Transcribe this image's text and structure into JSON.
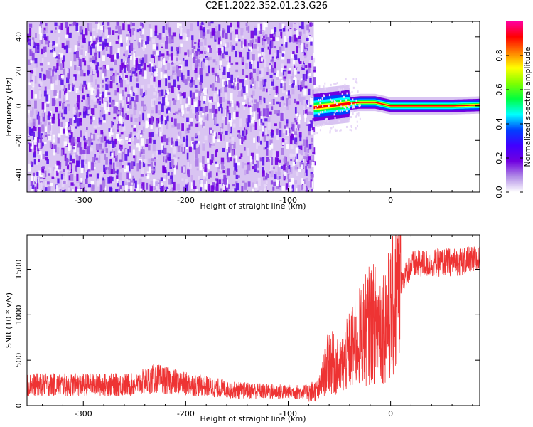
{
  "figure_title": "C2E1.2022.352.01.23.G26",
  "chart_data": [
    {
      "type": "heatmap",
      "xlabel": "Height of straight line (km)",
      "ylabel": "Frequency (Hz)",
      "xlim": [
        -355,
        87
      ],
      "ylim": [
        -50,
        49
      ],
      "xticks": [
        -300,
        -200,
        -100,
        0
      ],
      "yticks": [
        -40,
        -20,
        0,
        20,
        40
      ],
      "colorbar": {
        "label": "Normalized spectral amplitude",
        "range": [
          0.0,
          1.0
        ],
        "ticks": [
          0.0,
          0.2,
          0.4,
          0.6,
          0.8
        ],
        "colormap": [
          "#ffffff",
          "#b18ce6",
          "#7000e0",
          "#4000ff",
          "#0040ff",
          "#00ffff",
          "#00ff40",
          "#80ff00",
          "#ffff00",
          "#ff8000",
          "#ff0000",
          "#ff00a0"
        ]
      },
      "regions": [
        {
          "description": "broadband noise",
          "x_range": [
            -355,
            -75
          ],
          "y_range": [
            -50,
            49
          ],
          "amplitude": 0.15
        },
        {
          "description": "carrier signal",
          "x_range": [
            -75,
            87
          ],
          "frequency_hz": 0.5,
          "amplitude": 0.95
        }
      ],
      "signal_track": {
        "x": [
          -75,
          -60,
          -45,
          -30,
          -15,
          0,
          20,
          40,
          60,
          87
        ],
        "y": [
          -1,
          0,
          1,
          2,
          2,
          0,
          0,
          0,
          0,
          0.5
        ]
      }
    },
    {
      "type": "line",
      "xlabel": "Height of straight line (km)",
      "ylabel": "SNR (10 * v/v)",
      "xlim": [
        -355,
        87
      ],
      "ylim": [
        0,
        1880
      ],
      "xticks": [
        -300,
        -200,
        -100,
        0
      ],
      "yticks": [
        0,
        500,
        1000,
        1500
      ],
      "color": "#ee3333",
      "series": [
        {
          "x": [
            -355,
            -300,
            -250,
            -230,
            -200,
            -150,
            -100,
            -80,
            -70,
            -60,
            -50,
            -40,
            -30,
            -20,
            -10,
            0,
            10,
            20,
            40,
            60,
            87
          ],
          "y": [
            230,
            230,
            230,
            300,
            240,
            170,
            150,
            150,
            170,
            500,
            400,
            600,
            750,
            900,
            900,
            1000,
            1350,
            1550,
            1570,
            1580,
            1600
          ]
        }
      ]
    }
  ]
}
